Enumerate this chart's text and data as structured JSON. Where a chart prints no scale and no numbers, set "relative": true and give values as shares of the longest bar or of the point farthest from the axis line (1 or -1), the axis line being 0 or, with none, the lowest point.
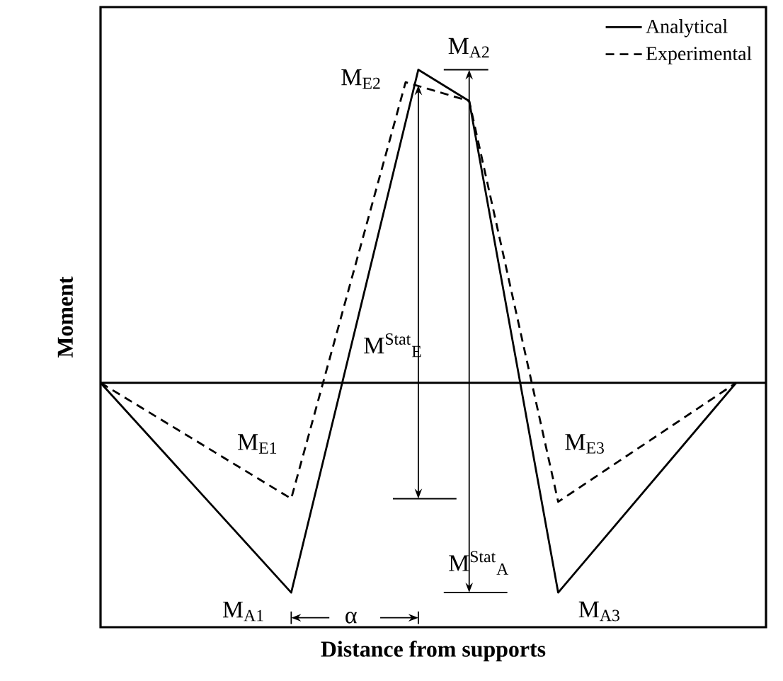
{
  "chart_data": {
    "type": "line",
    "relative": true,
    "xlabel": "Distance from supports",
    "ylabel": "Moment",
    "legend": "top right",
    "tick_labels": false,
    "marker": "none",
    "categories": [
      null,
      null,
      null,
      null,
      null,
      null,
      null,
      null,
      null,
      null,
      null,
      null,
      null,
      null,
      null,
      null,
      null,
      null,
      null,
      null,
      null,
      null,
      null,
      null,
      null,
      null,
      null,
      null,
      null,
      null,
      null,
      null,
      null,
      null,
      null,
      null,
      null,
      null,
      null,
      null,
      null,
      null,
      null,
      null,
      null,
      null,
      null,
      null,
      null,
      null,
      null
    ],
    "series": [
      {
        "name": "Analytical",
        "color": "#000000",
        "line_style": "solid",
        "values": [
          0,
          null,
          null,
          null,
          null,
          null,
          null,
          null,
          null,
          null,
          null,
          null,
          null,
          null,
          null,
          -0.67,
          null,
          null,
          null,
          null,
          null,
          null,
          null,
          null,
          null,
          1,
          null,
          null,
          null,
          0.9,
          null,
          null,
          null,
          null,
          null,
          null,
          -0.67,
          null,
          null,
          null,
          null,
          null,
          null,
          null,
          null,
          null,
          null,
          null,
          null,
          null,
          0
        ]
      },
      {
        "name": "Experimental",
        "color": "#000000",
        "line_style": "dashed",
        "values": [
          0,
          null,
          null,
          null,
          null,
          null,
          null,
          null,
          null,
          null,
          null,
          null,
          null,
          null,
          null,
          -0.37,
          null,
          null,
          null,
          null,
          null,
          null,
          null,
          null,
          0.96,
          null,
          null,
          null,
          null,
          0.9,
          null,
          null,
          null,
          null,
          null,
          null,
          -0.38,
          null,
          null,
          null,
          null,
          null,
          null,
          null,
          null,
          null,
          null,
          null,
          null,
          null,
          0
        ]
      }
    ],
    "annotations": [
      "M$_{E2}$",
      "M$_{A2}$",
      "M$_{E1}$",
      "M$_{E3}$",
      "M$_{A1}$",
      "M$_{A3}$",
      "M$^{Stat}$$_{E}$",
      "M$^{Stat}$$_{A}$",
      "α"
    ]
  }
}
